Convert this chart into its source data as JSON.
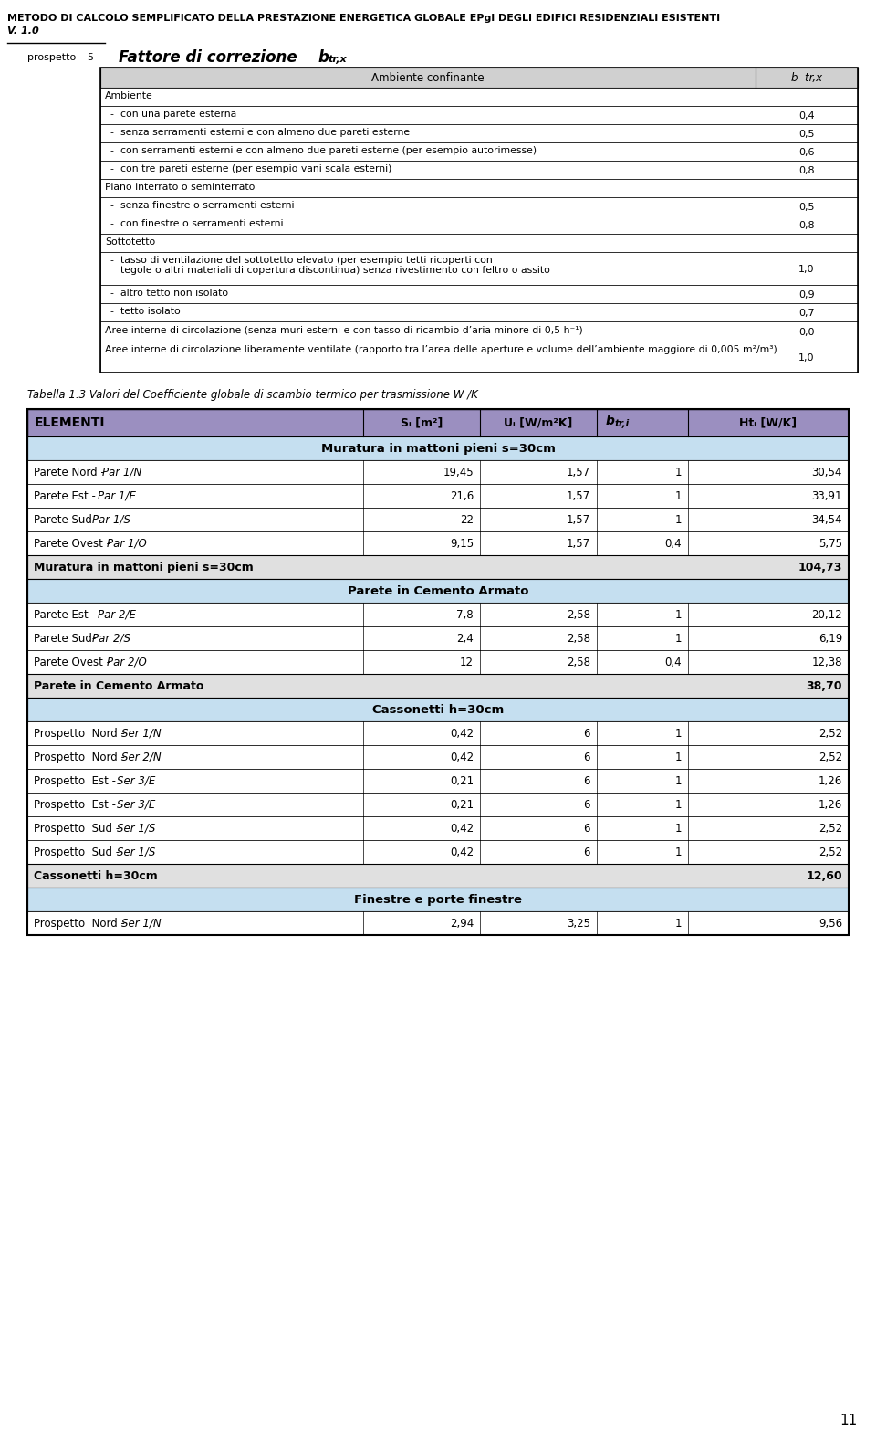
{
  "page_title": "METODO DI CALCOLO SEMPLIFICATO DELLA PRESTAZIONE ENERGETICA GLOBALE EPgl DEGLI EDIFICI RESIDENZIALI ESISTENTI",
  "page_subtitle": "V. 1.0",
  "page_number": "11",
  "header_bg": "#9b8fc0",
  "section_bg1": "#c5dff0",
  "table2_caption": "Tabella 1.3 Valori del Coefficiente globale di scambio termico per trasmissione W /K",
  "table1_rows": [
    {
      "indent": 0,
      "text": "Ambiente",
      "value": "",
      "tall": false
    },
    {
      "indent": 1,
      "text": "con una parete esterna",
      "value": "0,4",
      "tall": false
    },
    {
      "indent": 1,
      "text": "senza serramenti esterni e con almeno due pareti esterne",
      "value": "0,5",
      "tall": false
    },
    {
      "indent": 1,
      "text": "con serramenti esterni e con almeno due pareti esterne (per esempio autorimesse)",
      "value": "0,6",
      "tall": false
    },
    {
      "indent": 1,
      "text": "con tre pareti esterne (per esempio vani scala esterni)",
      "value": "0,8",
      "tall": false
    },
    {
      "indent": 0,
      "text": "Piano interrato o seminterrato",
      "value": "",
      "tall": false
    },
    {
      "indent": 1,
      "text": "senza finestre o serramenti esterni",
      "value": "0,5",
      "tall": false
    },
    {
      "indent": 1,
      "text": "con finestre o serramenti esterni",
      "value": "0,8",
      "tall": false
    },
    {
      "indent": 0,
      "text": "Sottotetto",
      "value": "",
      "tall": false
    },
    {
      "indent": 1,
      "text": "tasso di ventilazione del sottotetto elevato (per esempio tetti ricoperti con tegole o altri materiali di copertura discontinua) senza rivestimento con feltro o assito",
      "value": "1,0",
      "tall": true
    },
    {
      "indent": 1,
      "text": "altro tetto non isolato",
      "value": "0,9",
      "tall": false
    },
    {
      "indent": 1,
      "text": "tetto isolato",
      "value": "0,7",
      "tall": false
    },
    {
      "indent": 0,
      "text": "Aree interne di circolazione (senza muri esterni e con tasso di ricambio d’aria minore di 0,5 h⁻¹)",
      "value": "0,0",
      "tall": false
    },
    {
      "indent": 0,
      "text": "Aree interne di circolazione liberamente ventilate (rapporto tra l’area delle aperture e volume dell’ambiente maggiore di 0,005 m²/m³)",
      "value": "1,0",
      "tall": true
    }
  ],
  "table2_rows": [
    {
      "type": "section",
      "label": "Muratura in mattoni pieni s=30cm"
    },
    {
      "type": "data",
      "normal": "Parete Nord - ",
      "italic": "Par 1/N",
      "s": "19,45",
      "u": "1,57",
      "b": "1",
      "ht": "30,54"
    },
    {
      "type": "data",
      "normal": "Parete Est - ",
      "italic": "Par 1/E",
      "s": "21,6",
      "u": "1,57",
      "b": "1",
      "ht": "33,91"
    },
    {
      "type": "data",
      "normal": "Parete Sud- ",
      "italic": "Par 1/S",
      "s": "22",
      "u": "1,57",
      "b": "1",
      "ht": "34,54"
    },
    {
      "type": "data",
      "normal": "Parete Ovest - ",
      "italic": "Par 1/O",
      "s": "9,15",
      "u": "1,57",
      "b": "0,4",
      "ht": "5,75"
    },
    {
      "type": "subtotal",
      "label": "Muratura in mattoni pieni s=30cm",
      "value": "104,73"
    },
    {
      "type": "section",
      "label": "Parete in Cemento Armato"
    },
    {
      "type": "data",
      "normal": "Parete Est - ",
      "italic": "Par 2/E",
      "s": "7,8",
      "u": "2,58",
      "b": "1",
      "ht": "20,12"
    },
    {
      "type": "data",
      "normal": "Parete Sud- ",
      "italic": "Par 2/S",
      "s": "2,4",
      "u": "2,58",
      "b": "1",
      "ht": "6,19"
    },
    {
      "type": "data",
      "normal": "Parete Ovest - ",
      "italic": "Par 2/O",
      "s": "12",
      "u": "2,58",
      "b": "0,4",
      "ht": "12,38"
    },
    {
      "type": "subtotal",
      "label": "Parete in Cemento Armato",
      "value": "38,70"
    },
    {
      "type": "section",
      "label": "Cassonetti h=30cm"
    },
    {
      "type": "data",
      "normal": "Prospetto  Nord - ",
      "italic": "Ser 1/N",
      "s": "0,42",
      "u": "6",
      "b": "1",
      "ht": "2,52"
    },
    {
      "type": "data",
      "normal": "Prospetto  Nord - ",
      "italic": "Ser 2/N",
      "s": "0,42",
      "u": "6",
      "b": "1",
      "ht": "2,52"
    },
    {
      "type": "data",
      "normal": "Prospetto  Est - ",
      "italic": "Ser 3/E",
      "s": "0,21",
      "u": "6",
      "b": "1",
      "ht": "1,26"
    },
    {
      "type": "data",
      "normal": "Prospetto  Est - ",
      "italic": "Ser 3/E",
      "s": "0,21",
      "u": "6",
      "b": "1",
      "ht": "1,26"
    },
    {
      "type": "data",
      "normal": "Prospetto  Sud - ",
      "italic": "Ser 1/S",
      "s": "0,42",
      "u": "6",
      "b": "1",
      "ht": "2,52"
    },
    {
      "type": "data",
      "normal": "Prospetto  Sud - ",
      "italic": "Ser 1/S",
      "s": "0,42",
      "u": "6",
      "b": "1",
      "ht": "2,52"
    },
    {
      "type": "subtotal",
      "label": "Cassonetti h=30cm",
      "value": "12,60"
    },
    {
      "type": "section",
      "label": "Finestre e porte finestre"
    },
    {
      "type": "data",
      "normal": "Prospetto  Nord - ",
      "italic": "Ser 1/N",
      "s": "2,94",
      "u": "3,25",
      "b": "1",
      "ht": "9,56"
    }
  ]
}
